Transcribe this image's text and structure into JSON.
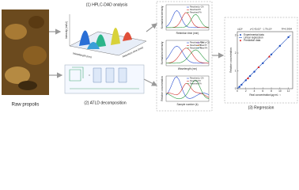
{
  "photo": {
    "label": "Raw propolis"
  },
  "step1": {
    "title": "(1) HPLC-DAD analysis",
    "axis_z": "Intensity (mAU)",
    "axis_y": "Wavelength (nm)",
    "axis_x": "Retention time (min)"
  },
  "step2": {
    "title": "(2) ATLD decomposition"
  },
  "profiles": {
    "panels": [
      {
        "y_label": "Normalized intensity",
        "x_label": "Retention time (min)",
        "legend": [
          "Resolved p-CA",
          "Resolved PI",
          "Resolved FA"
        ]
      },
      {
        "y_label": "Normalized intensity",
        "x_label": "Wavelength (nm)",
        "legend": [
          "Resolved p-CA",
          "Resolved PI",
          "Resolved FA",
          "Real p-CA",
          "Real PI",
          "Real FA"
        ]
      },
      {
        "y_label": "Relative concentration",
        "x_label": "Sample number (k)",
        "legend": [
          "Resolved p-CA",
          "Resolved PI",
          "Resolved FA"
        ]
      }
    ]
  },
  "chart_data": {
    "type": "scatter",
    "title": "(3) Regression",
    "x_label": "Real concentration/µg·mL⁻¹",
    "y_label": "Relative concentration",
    "y_multiplier": "×10⁵",
    "equation": "y=2.42x10⁴ - 1.79x10³",
    "r2": "R²=0.9994",
    "xlim": [
      0,
      13
    ],
    "xticks": [
      0,
      2,
      4,
      6,
      8,
      10,
      12
    ],
    "ylim": [
      0,
      3.2
    ],
    "yticks": [
      0,
      1,
      2,
      3
    ],
    "series": [
      {
        "name": "Experimental data",
        "color": "#1f4fbf",
        "marker": "circle",
        "x": [
          0.5,
          1,
          2,
          3,
          4,
          6,
          8,
          10,
          12
        ],
        "values": [
          0.1,
          0.22,
          0.47,
          0.71,
          0.95,
          1.43,
          1.92,
          2.4,
          2.89
        ]
      },
      {
        "name": "Linear regression",
        "color": "#1f4fbf",
        "marker": "line",
        "x": [
          0,
          12.5
        ],
        "values": [
          0,
          3.01
        ]
      },
      {
        "name": "Prediction data",
        "color": "#d22",
        "marker": "triangle",
        "x": [
          2.5,
          5,
          7.5
        ],
        "values": [
          0.58,
          1.2,
          1.8
        ]
      }
    ]
  }
}
